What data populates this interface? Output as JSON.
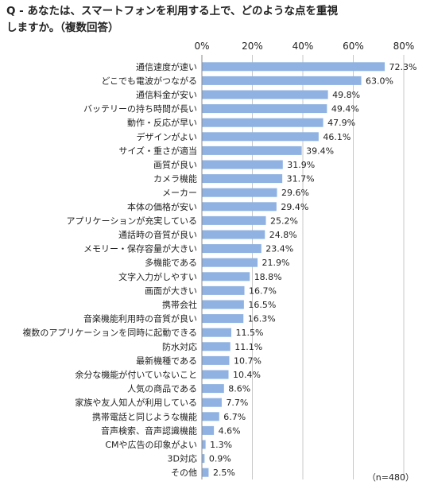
{
  "question": {
    "line1": "Q - あなたは、スマートフォンを利用する上で、どのような点を重視",
    "line2": "しますか。（複数回答）"
  },
  "note": "（n=480）",
  "chart_data": {
    "type": "bar",
    "orientation": "horizontal",
    "xlim": [
      0,
      80
    ],
    "ticks": [
      0,
      20,
      40,
      60,
      80
    ],
    "tick_labels": [
      "0%",
      "20%",
      "40%",
      "60%",
      "80%"
    ],
    "grid": true,
    "bar_color": "#8fb2e2",
    "categories": [
      "通信速度が速い",
      "どこでも電波がつながる",
      "通信料金が安い",
      "バッテリーの持ち時間が長い",
      "動作・反応が早い",
      "デザインがよい",
      "サイズ・重さが適当",
      "画質が良い",
      "カメラ機能",
      "メーカー",
      "本体の価格が安い",
      "アプリケーションが充実している",
      "通話時の音質が良い",
      "メモリー・保存容量が大きい",
      "多機能である",
      "文字入力がしやすい",
      "画面が大きい",
      "携帯会社",
      "音楽機能利用時の音質が良い",
      "複数のアプリケーションを同時に起動できる",
      "防水対応",
      "最新機種である",
      "余分な機能が付いていないこと",
      "人気の商品である",
      "家族や友人知人が利用している",
      "携帯電話と同じような機能",
      "音声検索、音声認識機能",
      "CMや広告の印象がよい",
      "3D対応",
      "その他"
    ],
    "values": [
      72.3,
      63.0,
      49.8,
      49.4,
      47.9,
      46.1,
      39.4,
      31.9,
      31.7,
      29.6,
      29.4,
      25.2,
      24.8,
      23.4,
      21.9,
      18.8,
      16.7,
      16.5,
      16.3,
      11.5,
      11.1,
      10.7,
      10.4,
      8.6,
      7.7,
      6.7,
      4.6,
      1.3,
      0.9,
      2.5
    ],
    "value_labels": [
      "72.3%",
      "63.0%",
      "49.8%",
      "49.4%",
      "47.9%",
      "46.1%",
      "39.4%",
      "31.9%",
      "31.7%",
      "29.6%",
      "29.4%",
      "25.2%",
      "24.8%",
      "23.4%",
      "21.9%",
      "18.8%",
      "16.7%",
      "16.5%",
      "16.3%",
      "11.5%",
      "11.1%",
      "10.7%",
      "10.4%",
      "8.6%",
      "7.7%",
      "6.7%",
      "4.6%",
      "1.3%",
      "0.9%",
      "2.5%"
    ]
  }
}
